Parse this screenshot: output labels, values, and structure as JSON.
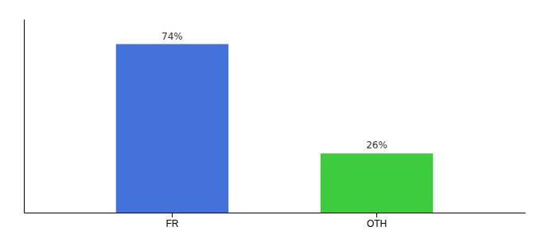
{
  "chart_data": {
    "type": "bar",
    "categories": [
      "FR",
      "OTH"
    ],
    "values": [
      74,
      26
    ],
    "value_labels": [
      "74%",
      "26%"
    ],
    "colors": [
      "#4472db",
      "#3dcc3d"
    ],
    "ylim": [
      0,
      85
    ],
    "grid": false,
    "data_labels": true,
    "tick_labels": "x"
  }
}
